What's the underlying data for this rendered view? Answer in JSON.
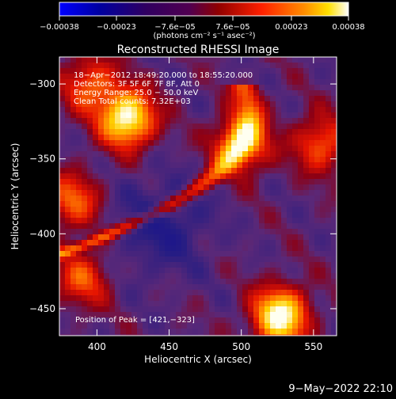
{
  "chart_data": {
    "type": "heatmap",
    "title": "Reconstructed RHESSI Image",
    "xlabel": "Heliocentric X (arcsec)",
    "ylabel": "Heliocentric Y (arcsec)",
    "xlim": [
      374,
      566
    ],
    "ylim": [
      -468,
      -282
    ],
    "x_ticks": [
      400,
      450,
      500,
      550
    ],
    "y_ticks": [
      -450,
      -400,
      -350,
      -300
    ],
    "colorbar": {
      "range": [
        -0.00038,
        0.00038
      ],
      "ticks": [
        {
          "value": -0.00038,
          "label": "−0.00038"
        },
        {
          "value": -0.00023,
          "label": "−0.00023"
        },
        {
          "value": -7.6e-05,
          "label": "−7.6e−05"
        },
        {
          "value": 7.6e-05,
          "label": "7.6e−05"
        },
        {
          "value": 0.00023,
          "label": "0.00023"
        },
        {
          "value": 0.00038,
          "label": "0.00038"
        }
      ],
      "unit": "(photons cm⁻² s⁻¹ asec⁻²)",
      "colors": [
        "#0000ff",
        "#000080",
        "#400080",
        "#800000",
        "#ff0000",
        "#ff8000",
        "#ffd000",
        "#ffffff"
      ]
    },
    "annotations": [
      "18−Apr−2012 18:49:20.000 to 18:55:20.000",
      "Detectors: 3F 5F 6F 7F 8F, Att 0",
      "Energy Range: 25.0 − 50.0 keV",
      "Clean    Total counts: 7.32E+03"
    ],
    "peak_label": "Position of Peak = [421,−323]",
    "sources": [
      {
        "x": 421,
        "y": -323,
        "peak": 1.0
      },
      {
        "x": 527,
        "y": -455,
        "peak": 1.0
      },
      {
        "x": 500,
        "y": -340,
        "peak": 0.7
      },
      {
        "x": 395,
        "y": -300,
        "peak": 0.5
      },
      {
        "x": 383,
        "y": -378,
        "peak": 0.5
      },
      {
        "x": 555,
        "y": -340,
        "peak": 0.5
      },
      {
        "x": 390,
        "y": -430,
        "peak": 0.45
      }
    ]
  },
  "timestamp": "9−May−2022 22:10"
}
